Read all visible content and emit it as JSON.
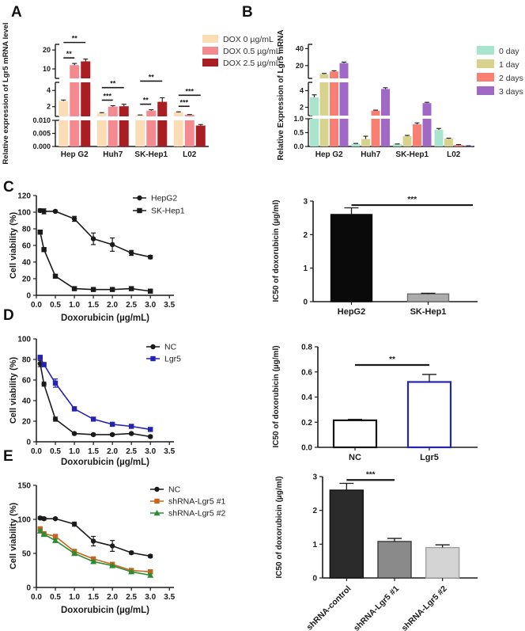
{
  "letters": {
    "A": "A",
    "B": "B",
    "C": "C",
    "D": "D",
    "E": "E"
  },
  "colors": {
    "axis": "#1a1a1a",
    "dox0": "#FBDDB5",
    "dox05": "#F4898F",
    "dox25": "#A91E22",
    "day0": "#A9E5CE",
    "day1": "#D8D28F",
    "day2": "#F87F72",
    "day3": "#A169C6",
    "black": "#1a1a1a",
    "blue": "#2323B4",
    "orange": "#C8641E",
    "green": "#2E8B35",
    "gray_bar": "#ACACAC",
    "dark_bar": "#2B2B2B",
    "mid_gray_bar": "#8A8A8A",
    "light_gray_bar": "#D4D4D4"
  },
  "chart_data": [
    {
      "id": "chart-A",
      "type": "grouped_bar_broken",
      "ylabel": "Relative expression of Lgr5 mRNA level",
      "categories": [
        "Hep G2",
        "Huh7",
        "SK-Hep1",
        "L02"
      ],
      "series": [
        {
          "name": "DOX 0    µg/mL",
          "color": "#FBDDB5",
          "values": [
            2.7,
            1.2,
            0.95,
            1.3
          ],
          "errors": [
            0.12,
            0.06,
            0.03,
            0.06
          ]
        },
        {
          "name": "DOX 0.5 µg/mL",
          "color": "#F4898F",
          "values": [
            12,
            2.0,
            1.5,
            1.0
          ],
          "errors": [
            0.9,
            0.12,
            0.12,
            0.03
          ]
        },
        {
          "name": "DOX 2.5 µg/mL",
          "color": "#A91E22",
          "values": [
            14,
            2.05,
            2.6,
            0.008
          ],
          "errors": [
            1.2,
            0.25,
            0.5,
            0.0004
          ]
        }
      ],
      "segments": [
        {
          "range": [
            0,
            0.01
          ],
          "ticks": [
            {
              "v": 0,
              "label": "0.000"
            },
            {
              "v": 0.005,
              "label": "0.005"
            },
            {
              "v": 0.01,
              "label": "0.010"
            }
          ]
        },
        {
          "range": [
            0.8,
            5
          ],
          "ticks": [
            {
              "v": 2,
              "label": "2"
            },
            {
              "v": 4,
              "label": "4"
            }
          ]
        },
        {
          "range": [
            5,
            23
          ],
          "ticks": [
            {
              "v": 10,
              "label": "10"
            },
            {
              "v": 20,
              "label": "20"
            }
          ]
        }
      ],
      "significance": [
        {
          "category": 0,
          "from": 0,
          "to": 1,
          "row": 0,
          "stars": "**"
        },
        {
          "category": 0,
          "from": 0,
          "to": 2,
          "row": 1,
          "stars": "**"
        },
        {
          "category": 1,
          "from": 0,
          "to": 1,
          "row": 0,
          "stars": "***"
        },
        {
          "category": 1,
          "from": 0,
          "to": 2,
          "row": 1,
          "stars": "**"
        },
        {
          "category": 2,
          "from": 0,
          "to": 1,
          "row": 0,
          "stars": "**"
        },
        {
          "category": 2,
          "from": 0,
          "to": 2,
          "row": 1,
          "stars": "**"
        },
        {
          "category": 3,
          "from": 0,
          "to": 1,
          "row": 0,
          "stars": "***"
        },
        {
          "category": 3,
          "from": 0,
          "to": 2,
          "row": 1,
          "stars": "***"
        }
      ]
    },
    {
      "id": "chart-B",
      "type": "grouped_bar_broken",
      "ylabel": "Relative Expression of Lgr5 mRNA",
      "categories": [
        "Hep G2",
        "Huh7",
        "SK-Hep1",
        "L02"
      ],
      "series": [
        {
          "name": "0 day",
          "color": "#A9E5CE",
          "values": [
            3.2,
            0.1,
            0.08,
            0.6
          ],
          "errors": [
            0.3,
            0.01,
            0.01,
            0.05
          ]
        },
        {
          "name": "1 day",
          "color": "#D8D28F",
          "values": [
            10,
            0.27,
            0.37,
            0.28
          ],
          "errors": [
            0.8,
            0.1,
            0.03,
            0.02
          ]
        },
        {
          "name": "2 days",
          "color": "#F87F72",
          "values": [
            13,
            1.6,
            0.8,
            0.06
          ],
          "errors": [
            1.0,
            0.06,
            0.05,
            0.01
          ]
        },
        {
          "name": "3 days",
          "color": "#A169C6",
          "values": [
            23,
            4.2,
            2.5,
            0.02
          ],
          "errors": [
            1.2,
            0.15,
            0.1,
            0.005
          ]
        }
      ],
      "segments": [
        {
          "range": [
            0,
            1.0
          ],
          "ticks": [
            {
              "v": 0,
              "label": "0.0"
            },
            {
              "v": 0.5,
              "label": "0.5"
            },
            {
              "v": 1.0,
              "label": "1.0"
            }
          ]
        },
        {
          "range": [
            1,
            5
          ],
          "ticks": [
            {
              "v": 2,
              "label": "2"
            },
            {
              "v": 4,
              "label": "4"
            }
          ]
        },
        {
          "range": [
            5,
            45
          ],
          "ticks": [
            {
              "v": 20,
              "label": "20"
            },
            {
              "v": 40,
              "label": "40"
            }
          ]
        }
      ],
      "significance": []
    },
    {
      "id": "chart-C-line",
      "type": "line",
      "ylabel": "Cell viability (%)",
      "xlabel": "Doxorubicin (µg/mL)",
      "ylim": [
        0,
        120
      ],
      "yticks": [
        {
          "v": 0,
          "label": "0"
        },
        {
          "v": 20,
          "label": "20"
        },
        {
          "v": 40,
          "label": "40"
        },
        {
          "v": 60,
          "label": "60"
        },
        {
          "v": 80,
          "label": "80"
        },
        {
          "v": 100,
          "label": "100"
        },
        {
          "v": 120,
          "label": "120"
        }
      ],
      "xlim": [
        0,
        3.62
      ],
      "xticks": [
        {
          "v": 0,
          "label": "0.0"
        },
        {
          "v": 0.5,
          "label": "0.5"
        },
        {
          "v": 1.0,
          "label": "1.0"
        },
        {
          "v": 1.5,
          "label": "1.5"
        },
        {
          "v": 2.0,
          "label": "2.0"
        },
        {
          "v": 2.5,
          "label": "2.5"
        },
        {
          "v": 3.0,
          "label": "3.0"
        },
        {
          "v": 3.5,
          "label": "3.5"
        }
      ],
      "series": [
        {
          "name": "HepG2",
          "color": "#1a1a1a",
          "marker": "circle",
          "x": [
            0.1,
            0.2,
            0.5,
            1.0,
            1.5,
            2.0,
            2.5,
            3.0
          ],
          "y": [
            102,
            101,
            101,
            92,
            68,
            61,
            51,
            46
          ],
          "err": [
            2,
            3,
            1,
            3,
            7,
            8,
            3,
            2
          ]
        },
        {
          "name": "SK-Hep1",
          "color": "#1a1a1a",
          "marker": "square",
          "x": [
            0.1,
            0.2,
            0.5,
            1.0,
            1.5,
            2.0,
            2.5,
            3.0
          ],
          "y": [
            76,
            55,
            23,
            8,
            7,
            7,
            8,
            5
          ],
          "err": [
            2,
            2,
            2,
            1,
            1,
            1,
            1,
            1
          ]
        }
      ]
    },
    {
      "id": "chart-C-bar",
      "type": "bar",
      "ylabel": "IC50 of doxorubicin (µg/ml)",
      "ylim": [
        0,
        3
      ],
      "yticks": [
        {
          "v": 0,
          "label": "0"
        },
        {
          "v": 1,
          "label": "1"
        },
        {
          "v": 2,
          "label": "2"
        },
        {
          "v": 3,
          "label": "3"
        }
      ],
      "categories": [
        "HepG2",
        "SK-Hep1"
      ],
      "values": [
        2.6,
        0.23
      ],
      "errors": [
        0.2,
        0.02
      ],
      "fills": [
        "#0a0a0a",
        "#ACACAC"
      ],
      "strokes": [
        "#0a0a0a",
        "#6e6e6e"
      ],
      "rotate_labels": false,
      "significance": [
        {
          "from": 0,
          "to": 1,
          "y": 2.88,
          "stars": "***",
          "to_edge": true
        }
      ]
    },
    {
      "id": "chart-D-line",
      "type": "line",
      "ylabel": "Cell viability (%)",
      "xlabel": "Doxorubicin (µg/mL)",
      "ylim": [
        0,
        100
      ],
      "yticks": [
        {
          "v": 0,
          "label": "0"
        },
        {
          "v": 20,
          "label": "20"
        },
        {
          "v": 40,
          "label": "40"
        },
        {
          "v": 60,
          "label": "60"
        },
        {
          "v": 80,
          "label": "80"
        },
        {
          "v": 100,
          "label": "100"
        }
      ],
      "xlim": [
        0,
        3.62
      ],
      "xticks": [
        {
          "v": 0,
          "label": "0.0"
        },
        {
          "v": 0.5,
          "label": "0.5"
        },
        {
          "v": 1.0,
          "label": "1.0"
        },
        {
          "v": 1.5,
          "label": "1.5"
        },
        {
          "v": 2.0,
          "label": "2.0"
        },
        {
          "v": 2.5,
          "label": "2.5"
        },
        {
          "v": 3.0,
          "label": "3.0"
        },
        {
          "v": 3.5,
          "label": "3.5"
        }
      ],
      "series": [
        {
          "name": "NC",
          "color": "#1a1a1a",
          "marker": "circle",
          "x": [
            0.1,
            0.2,
            0.5,
            1.0,
            1.5,
            2.0,
            2.5,
            3.0
          ],
          "y": [
            76,
            56,
            22,
            8,
            7,
            7,
            8,
            5
          ],
          "err": [
            3,
            2,
            2,
            1,
            1,
            1,
            1,
            1
          ]
        },
        {
          "name": "Lgr5",
          "color": "#2323B4",
          "marker": "square",
          "x": [
            0.1,
            0.2,
            0.5,
            1.0,
            1.5,
            2.0,
            2.5,
            3.0
          ],
          "y": [
            82,
            75,
            57,
            32,
            22,
            17,
            15,
            12
          ],
          "err": [
            2,
            2,
            4,
            2,
            1,
            1,
            1,
            1
          ]
        }
      ]
    },
    {
      "id": "chart-D-bar",
      "type": "bar",
      "ylabel": "IC50 of doxorubicin (µg/ml)",
      "ylim": [
        0,
        0.8
      ],
      "yticks": [
        {
          "v": 0,
          "label": "0.0"
        },
        {
          "v": 0.2,
          "label": "0.2"
        },
        {
          "v": 0.4,
          "label": "0.4"
        },
        {
          "v": 0.6,
          "label": "0.6"
        },
        {
          "v": 0.8,
          "label": "0.8"
        }
      ],
      "categories": [
        "NC",
        "Lgr5"
      ],
      "values": [
        0.215,
        0.52
      ],
      "errors": [
        0.008,
        0.06
      ],
      "fills": [
        "#FFFFFF",
        "#FFFFFF"
      ],
      "strokes": [
        "#151515",
        "#2323B4"
      ],
      "rotate_labels": false,
      "significance": [
        {
          "from": 0,
          "to": 1,
          "y": 0.655,
          "stars": "**",
          "to_edge": false
        }
      ]
    },
    {
      "id": "chart-E-line",
      "type": "line",
      "ylabel": "Cell viability (%)",
      "xlabel": "Doxorubicin (µg/mL)",
      "ylim": [
        0,
        150
      ],
      "yticks": [
        {
          "v": 0,
          "label": "0"
        },
        {
          "v": 50,
          "label": "50"
        },
        {
          "v": 100,
          "label": "100"
        },
        {
          "v": 150,
          "label": "150"
        }
      ],
      "xlim": [
        0,
        3.62
      ],
      "xticks": [
        {
          "v": 0,
          "label": "0.0"
        },
        {
          "v": 0.5,
          "label": "0.5"
        },
        {
          "v": 1.0,
          "label": "1.0"
        },
        {
          "v": 1.5,
          "label": "1.5"
        },
        {
          "v": 2.0,
          "label": "2.0"
        },
        {
          "v": 2.5,
          "label": "2.5"
        },
        {
          "v": 3.0,
          "label": "3.0"
        },
        {
          "v": 3.5,
          "label": "3.5"
        }
      ],
      "series": [
        {
          "name": "NC",
          "color": "#1a1a1a",
          "marker": "circle",
          "x": [
            0.1,
            0.2,
            0.5,
            1.0,
            1.5,
            2.0,
            2.5,
            3.0
          ],
          "y": [
            102,
            101,
            101,
            93,
            68,
            61,
            51,
            46
          ],
          "err": [
            2,
            2,
            1,
            3,
            7,
            8,
            2,
            2
          ]
        },
        {
          "name": "shRNA-Lgr5 #1",
          "color": "#C8641E",
          "marker": "square",
          "x": [
            0.1,
            0.2,
            0.5,
            1.0,
            1.5,
            2.0,
            2.5,
            3.0
          ],
          "y": [
            86,
            79,
            75,
            53,
            42,
            34,
            25,
            23
          ],
          "err": [
            3,
            2,
            2,
            2,
            2,
            2,
            2,
            3
          ]
        },
        {
          "name": "shRNA-Lgr5 #2",
          "color": "#2E8B35",
          "marker": "triangle",
          "x": [
            0.1,
            0.2,
            0.5,
            1.0,
            1.5,
            2.0,
            2.5,
            3.0
          ],
          "y": [
            83,
            78,
            69,
            50,
            38,
            32,
            23,
            18
          ],
          "err": [
            2,
            2,
            2,
            2,
            2,
            1,
            1,
            2
          ]
        }
      ]
    },
    {
      "id": "chart-E-bar",
      "type": "bar",
      "ylabel": "IC50 of doxorubicin (µg/ml)",
      "ylim": [
        0,
        3
      ],
      "yticks": [
        {
          "v": 0,
          "label": "0"
        },
        {
          "v": 1,
          "label": "1"
        },
        {
          "v": 2,
          "label": "2"
        },
        {
          "v": 3,
          "label": "3"
        }
      ],
      "categories": [
        "shRNA-control",
        "shRNA-Lgr5 #1",
        "shRNA-Lgr5 #2"
      ],
      "values": [
        2.6,
        1.08,
        0.9
      ],
      "errors": [
        0.2,
        0.09,
        0.08
      ],
      "fills": [
        "#2B2B2B",
        "#8A8A8A",
        "#D4D4D4"
      ],
      "strokes": [
        "#111111",
        "#3a3a3a",
        "#a0a0a0"
      ],
      "rotate_labels": true,
      "significance": [
        {
          "from": 0,
          "to": 1,
          "y": 2.9,
          "stars": "***",
          "to_edge": false
        }
      ]
    }
  ]
}
